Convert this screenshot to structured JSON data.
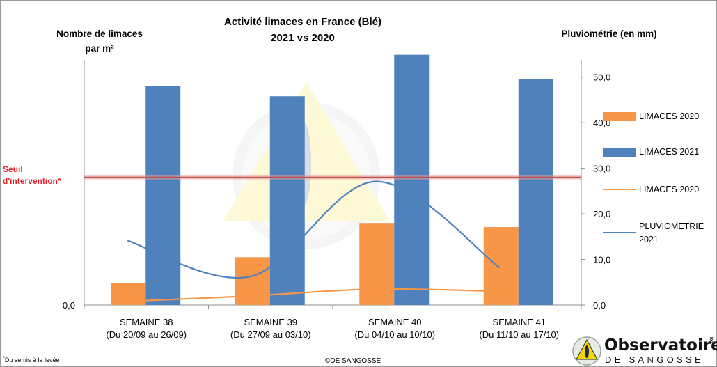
{
  "chart_data": {
    "type": "bar+line",
    "title": "Activité limaces en France (Blé)",
    "subtitle": "2021 vs 2020",
    "ylabel_left": "Nombre de limaces par m²",
    "ylabel_right": "Pluviométrie (en mm)",
    "categories": [
      [
        "SEMAINE 38",
        "(Du 20/09 au 26/09)"
      ],
      [
        "SEMAINE 39",
        "(Du 27/09 au 03/10)"
      ],
      [
        "SEMAINE 40",
        "(Du 04/10 au 10/10)"
      ],
      [
        "SEMAINE 41",
        "(Du 11/10 au 17/10)"
      ]
    ],
    "left_axis": {
      "ticks": [
        "0,0"
      ],
      "ylim": [
        0,
        55
      ]
    },
    "right_axis": {
      "ticks": [
        "0,0",
        "10,0",
        "20,0",
        "30,0",
        "40,0",
        "50,0"
      ],
      "ylim": [
        0,
        55
      ]
    },
    "series": [
      {
        "name": "LIMACES 2020",
        "kind": "bar",
        "axis": "right",
        "color": "#f79646",
        "values": [
          4.8,
          10.5,
          18.0,
          17.1
        ]
      },
      {
        "name": "LIMACES 2021",
        "kind": "bar",
        "axis": "right",
        "color": "#4f81bd",
        "values": [
          48.0,
          45.8,
          54.9,
          49.6
        ]
      },
      {
        "name": "LIMACES 2020",
        "kind": "line",
        "axis": "right",
        "color": "#f79646",
        "values": [
          0.8,
          2.0,
          3.5,
          3.0
        ]
      },
      {
        "name": "PLUVIOMETRIE 2021",
        "kind": "line",
        "axis": "right",
        "color": "#4f81bd",
        "values": [
          14.2,
          6.3,
          27.1,
          8.2
        ]
      }
    ],
    "threshold": {
      "label": "Seuil d'intervention*",
      "value": 28.0,
      "color": "#c0504d"
    },
    "legend_position": "right",
    "grid": false
  },
  "footnote": {
    "mark": "*",
    "text": "Du semis à la levée"
  },
  "copyright": "©DE SANGOSSE",
  "logo": {
    "word1": "Observatoire",
    "reg": "®",
    "word2": "DE SANGOSSE"
  },
  "colors": {
    "orange": "#f79646",
    "blue": "#4f81bd",
    "threshold_red": "#e8202a",
    "threshold_line": "#c0504d"
  }
}
